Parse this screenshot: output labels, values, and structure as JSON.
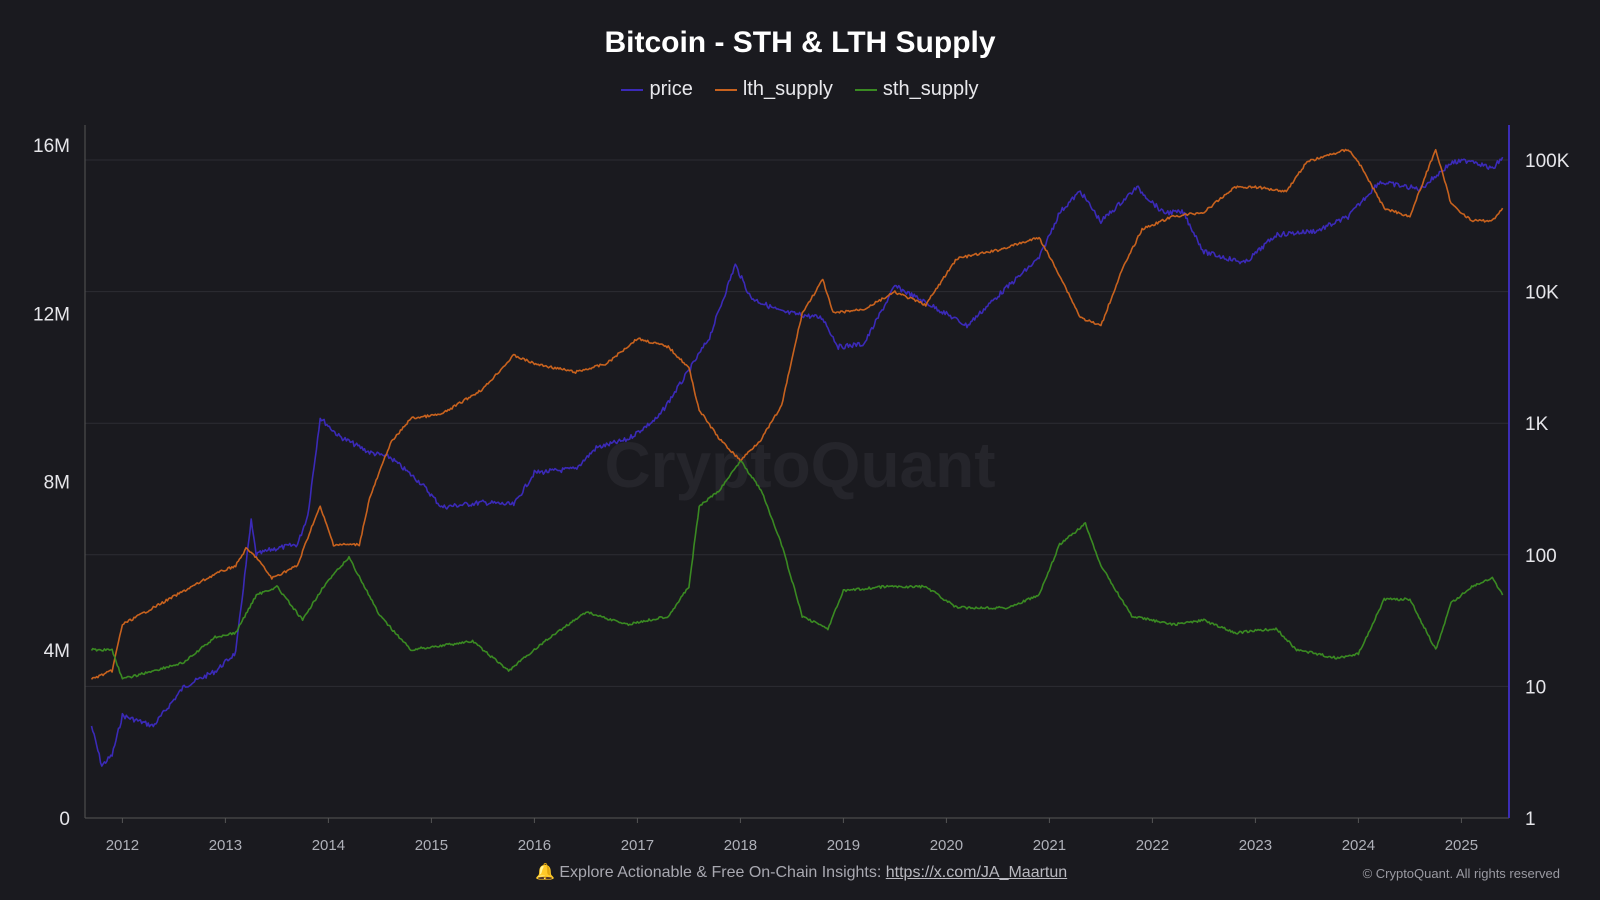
{
  "chart_data": {
    "type": "line",
    "title": "Bitcoin - STH & LTH Supply",
    "watermark": "CryptoQuant",
    "legend_position": "top-center",
    "grid": true,
    "x_ticks": [
      "2012",
      "2013",
      "2014",
      "2015",
      "2016",
      "2017",
      "2018",
      "2019",
      "2020",
      "2021",
      "2022",
      "2023",
      "2024",
      "2025"
    ],
    "y_left": {
      "range": [
        0,
        16000000
      ],
      "ticks": [
        "0",
        "4M",
        "8M",
        "12M",
        "16M"
      ]
    },
    "y_right": {
      "scale": "log",
      "range": [
        1,
        100000
      ],
      "ticks": [
        "1",
        "10",
        "100",
        "1K",
        "10K",
        "100K"
      ],
      "color": "#3b2db5"
    },
    "series": [
      {
        "name": "price",
        "axis": "right",
        "color": "#3b2ab8",
        "points": [
          [
            2011.7,
            5
          ],
          [
            2011.8,
            2.5
          ],
          [
            2011.9,
            3
          ],
          [
            2012.0,
            6
          ],
          [
            2012.3,
            5
          ],
          [
            2012.6,
            10
          ],
          [
            2012.9,
            13
          ],
          [
            2013.1,
            18
          ],
          [
            2013.25,
            180
          ],
          [
            2013.3,
            100
          ],
          [
            2013.45,
            110
          ],
          [
            2013.7,
            120
          ],
          [
            2013.8,
            200
          ],
          [
            2013.92,
            1100
          ],
          [
            2014.1,
            800
          ],
          [
            2014.4,
            600
          ],
          [
            2014.6,
            550
          ],
          [
            2014.9,
            350
          ],
          [
            2015.1,
            230
          ],
          [
            2015.5,
            250
          ],
          [
            2015.8,
            240
          ],
          [
            2016.0,
            420
          ],
          [
            2016.4,
            450
          ],
          [
            2016.6,
            650
          ],
          [
            2016.9,
            750
          ],
          [
            2017.2,
            1100
          ],
          [
            2017.5,
            2500
          ],
          [
            2017.7,
            4500
          ],
          [
            2017.95,
            16000
          ],
          [
            2018.1,
            9000
          ],
          [
            2018.4,
            7000
          ],
          [
            2018.8,
            6300
          ],
          [
            2018.95,
            3800
          ],
          [
            2019.2,
            4000
          ],
          [
            2019.5,
            11000
          ],
          [
            2019.9,
            7500
          ],
          [
            2020.2,
            5500
          ],
          [
            2020.5,
            9300
          ],
          [
            2020.9,
            18000
          ],
          [
            2021.1,
            40000
          ],
          [
            2021.3,
            58000
          ],
          [
            2021.5,
            34000
          ],
          [
            2021.85,
            62000
          ],
          [
            2022.1,
            40000
          ],
          [
            2022.3,
            40000
          ],
          [
            2022.5,
            20000
          ],
          [
            2022.9,
            16500
          ],
          [
            2023.2,
            27000
          ],
          [
            2023.6,
            29000
          ],
          [
            2023.9,
            37000
          ],
          [
            2024.2,
            68000
          ],
          [
            2024.6,
            60000
          ],
          [
            2024.9,
            95000
          ],
          [
            2025.1,
            100000
          ],
          [
            2025.3,
            85000
          ],
          [
            2025.4,
            105000
          ]
        ]
      },
      {
        "name": "lth_supply",
        "axis": "left",
        "color": "#c8621e",
        "points": [
          [
            2011.7,
            3300000
          ],
          [
            2011.9,
            3500000
          ],
          [
            2012.0,
            4600000
          ],
          [
            2012.3,
            5000000
          ],
          [
            2012.6,
            5400000
          ],
          [
            2012.9,
            5800000
          ],
          [
            2013.1,
            6000000
          ],
          [
            2013.2,
            6400000
          ],
          [
            2013.3,
            6200000
          ],
          [
            2013.45,
            5700000
          ],
          [
            2013.7,
            6000000
          ],
          [
            2013.85,
            7000000
          ],
          [
            2013.92,
            7400000
          ],
          [
            2014.05,
            6500000
          ],
          [
            2014.3,
            6500000
          ],
          [
            2014.4,
            7600000
          ],
          [
            2014.6,
            8900000
          ],
          [
            2014.8,
            9500000
          ],
          [
            2015.1,
            9600000
          ],
          [
            2015.5,
            10200000
          ],
          [
            2015.8,
            11000000
          ],
          [
            2016.0,
            10800000
          ],
          [
            2016.4,
            10600000
          ],
          [
            2016.7,
            10800000
          ],
          [
            2017.0,
            11400000
          ],
          [
            2017.3,
            11200000
          ],
          [
            2017.5,
            10700000
          ],
          [
            2017.6,
            9700000
          ],
          [
            2017.8,
            9000000
          ],
          [
            2018.0,
            8500000
          ],
          [
            2018.2,
            9000000
          ],
          [
            2018.4,
            9800000
          ],
          [
            2018.6,
            12000000
          ],
          [
            2018.8,
            12800000
          ],
          [
            2018.9,
            12000000
          ],
          [
            2019.2,
            12100000
          ],
          [
            2019.5,
            12500000
          ],
          [
            2019.8,
            12200000
          ],
          [
            2020.1,
            13300000
          ],
          [
            2020.5,
            13500000
          ],
          [
            2020.9,
            13800000
          ],
          [
            2021.1,
            12900000
          ],
          [
            2021.3,
            11900000
          ],
          [
            2021.5,
            11700000
          ],
          [
            2021.7,
            13000000
          ],
          [
            2021.9,
            14000000
          ],
          [
            2022.2,
            14300000
          ],
          [
            2022.5,
            14400000
          ],
          [
            2022.8,
            15000000
          ],
          [
            2023.0,
            15000000
          ],
          [
            2023.3,
            14900000
          ],
          [
            2023.5,
            15600000
          ],
          [
            2023.9,
            15900000
          ],
          [
            2024.0,
            15600000
          ],
          [
            2024.25,
            14500000
          ],
          [
            2024.5,
            14300000
          ],
          [
            2024.75,
            15900000
          ],
          [
            2024.9,
            14600000
          ],
          [
            2025.1,
            14200000
          ],
          [
            2025.3,
            14200000
          ],
          [
            2025.4,
            14500000
          ]
        ]
      },
      {
        "name": "sth_supply",
        "axis": "left",
        "color": "#3a8a22",
        "points": [
          [
            2011.7,
            4000000
          ],
          [
            2011.9,
            4000000
          ],
          [
            2012.0,
            3300000
          ],
          [
            2012.3,
            3500000
          ],
          [
            2012.6,
            3700000
          ],
          [
            2012.9,
            4300000
          ],
          [
            2013.1,
            4400000
          ],
          [
            2013.3,
            5300000
          ],
          [
            2013.5,
            5500000
          ],
          [
            2013.75,
            4700000
          ],
          [
            2013.95,
            5500000
          ],
          [
            2014.2,
            6200000
          ],
          [
            2014.5,
            4800000
          ],
          [
            2014.8,
            4000000
          ],
          [
            2015.1,
            4100000
          ],
          [
            2015.4,
            4200000
          ],
          [
            2015.75,
            3500000
          ],
          [
            2016.1,
            4200000
          ],
          [
            2016.5,
            4900000
          ],
          [
            2016.9,
            4600000
          ],
          [
            2017.3,
            4800000
          ],
          [
            2017.5,
            5500000
          ],
          [
            2017.6,
            7400000
          ],
          [
            2017.8,
            7800000
          ],
          [
            2018.0,
            8500000
          ],
          [
            2018.2,
            7800000
          ],
          [
            2018.4,
            6500000
          ],
          [
            2018.6,
            4800000
          ],
          [
            2018.85,
            4500000
          ],
          [
            2019.0,
            5400000
          ],
          [
            2019.4,
            5500000
          ],
          [
            2019.8,
            5500000
          ],
          [
            2020.1,
            5000000
          ],
          [
            2020.6,
            5000000
          ],
          [
            2020.9,
            5300000
          ],
          [
            2021.1,
            6500000
          ],
          [
            2021.35,
            7000000
          ],
          [
            2021.5,
            6000000
          ],
          [
            2021.8,
            4800000
          ],
          [
            2022.2,
            4600000
          ],
          [
            2022.5,
            4700000
          ],
          [
            2022.8,
            4400000
          ],
          [
            2023.2,
            4500000
          ],
          [
            2023.4,
            4000000
          ],
          [
            2023.8,
            3800000
          ],
          [
            2024.0,
            3900000
          ],
          [
            2024.25,
            5200000
          ],
          [
            2024.5,
            5200000
          ],
          [
            2024.75,
            4000000
          ],
          [
            2024.9,
            5100000
          ],
          [
            2025.1,
            5500000
          ],
          [
            2025.3,
            5700000
          ],
          [
            2025.4,
            5300000
          ]
        ]
      }
    ]
  },
  "footer": {
    "text": "Explore Actionable & Free On-Chain Insights: ",
    "link": "https://x.com/JA_Maartun",
    "copyright": "© CryptoQuant. All rights reserved"
  }
}
